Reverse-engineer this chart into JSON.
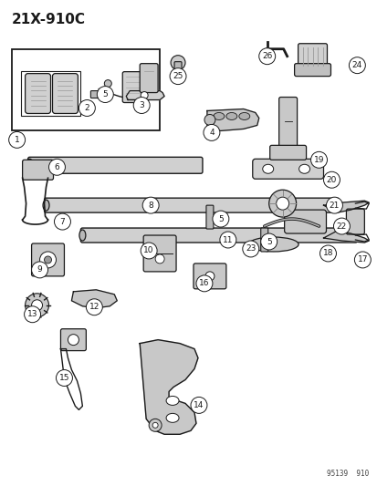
{
  "title": "21X-910C",
  "bg": "#ffffff",
  "lc": "#1a1a1a",
  "gray": "#b0b0b0",
  "lgray": "#d8d8d8",
  "watermark": "95139  910",
  "fig_w": 4.14,
  "fig_h": 5.33,
  "dpi": 100
}
